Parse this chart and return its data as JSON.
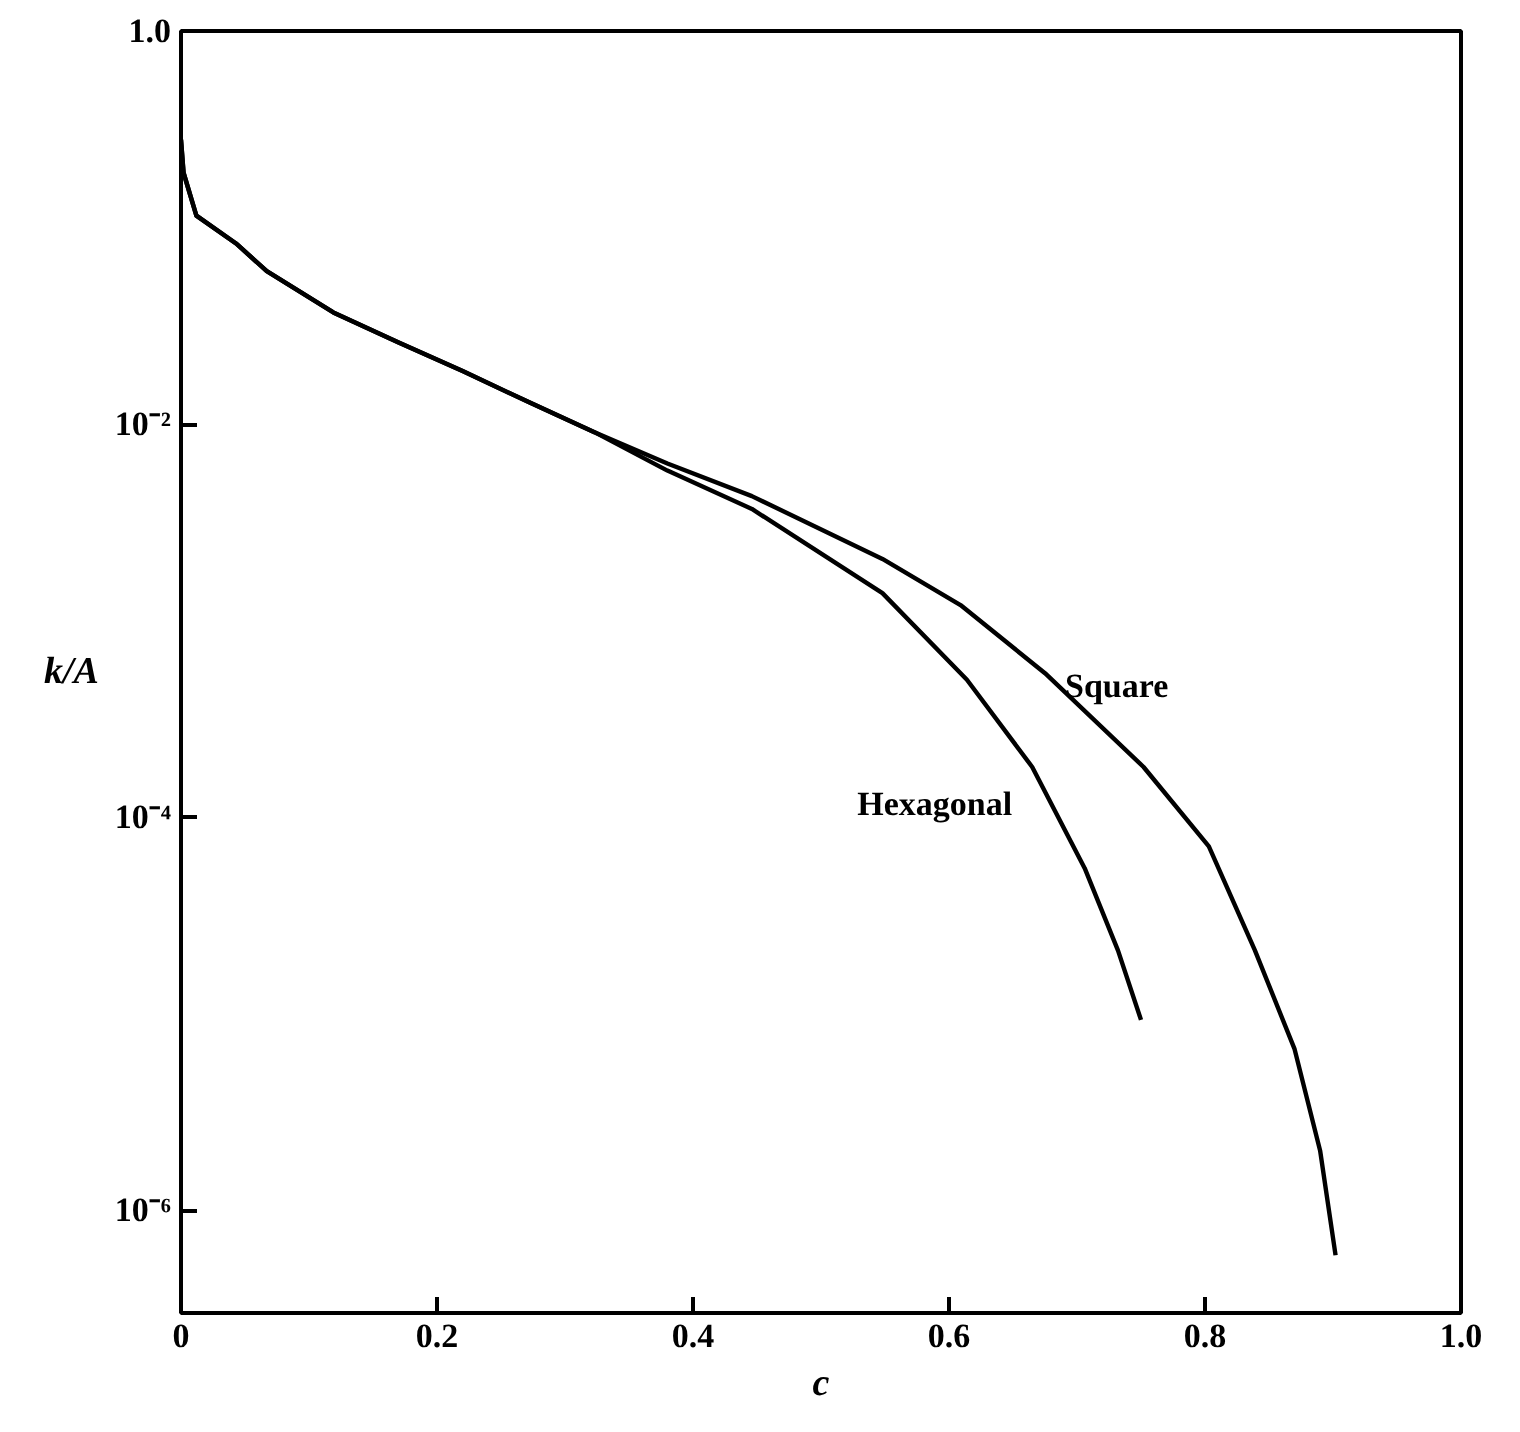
{
  "chart_data": {
    "type": "line",
    "xlabel": "c",
    "ylabel": "k/A",
    "log": "y",
    "grid": false,
    "xlim": [
      0,
      1
    ],
    "xticks": [
      0,
      0.2,
      0.4,
      0.6,
      0.8,
      {
        "value": 1,
        "label": "1.0"
      }
    ],
    "ylim": [
      3e-07,
      1
    ],
    "yticks": [
      {
        "value": 1,
        "label": "1.0"
      },
      {
        "value": 0.01,
        "label": "10⁻²"
      },
      {
        "value": 0.0001,
        "label": "10⁻⁴"
      },
      {
        "value": 1e-06,
        "label": "10⁻⁶"
      }
    ],
    "series": [
      {
        "name": "Square",
        "color": "#000000",
        "x": [
          0,
          0.002,
          0.012,
          0.043,
          0.067,
          0.119,
          0.17,
          0.22,
          0.272,
          0.323,
          0.38,
          0.446,
          0.548,
          0.609,
          0.675,
          0.752,
          0.803,
          0.839,
          0.87,
          0.89,
          0.902
        ],
        "values": [
          0.28,
          0.19,
          0.115,
          0.083,
          0.06,
          0.037,
          0.026,
          0.0186,
          0.0129,
          0.0091,
          0.0063,
          0.0043,
          0.00206,
          0.0012,
          0.00054,
          0.00018,
          7.1e-05,
          2.1e-05,
          6.6e-06,
          2e-06,
          5.9e-07
        ]
      },
      {
        "name": "Hexagonal",
        "color": "#000000",
        "x": [
          0,
          0.002,
          0.012,
          0.043,
          0.067,
          0.119,
          0.17,
          0.22,
          0.272,
          0.323,
          0.38,
          0.446,
          0.548,
          0.614,
          0.665,
          0.706,
          0.732,
          0.75
        ],
        "values": [
          0.28,
          0.19,
          0.115,
          0.083,
          0.06,
          0.037,
          0.026,
          0.0186,
          0.0129,
          0.0091,
          0.0058,
          0.0037,
          0.00138,
          0.0005,
          0.00018,
          5.5e-05,
          2.1e-05,
          9.3e-06
        ]
      }
    ]
  }
}
